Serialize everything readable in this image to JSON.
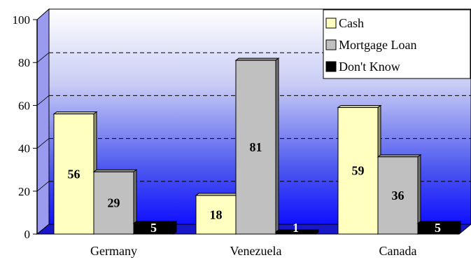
{
  "chart_data": {
    "type": "bar",
    "categories": [
      "Germany",
      "Venezuela",
      "Canada"
    ],
    "series": [
      {
        "name": "Cash",
        "values": [
          56,
          18,
          59
        ],
        "color": "#ffffc0"
      },
      {
        "name": "Mortgage Loan",
        "values": [
          29,
          81,
          36
        ],
        "color": "#c0c0c0"
      },
      {
        "name": "Don't Know",
        "values": [
          5,
          1,
          5
        ],
        "color": "#000000"
      }
    ],
    "ylim": [
      0,
      100
    ],
    "yticks": [
      "0",
      "20",
      "40",
      "60",
      "80",
      "100"
    ],
    "grid": true,
    "legend_position": "top-right",
    "colors": {
      "background_top": "#ffffff",
      "background_bottom": "#0000ff",
      "floor": "#0000d0"
    }
  }
}
